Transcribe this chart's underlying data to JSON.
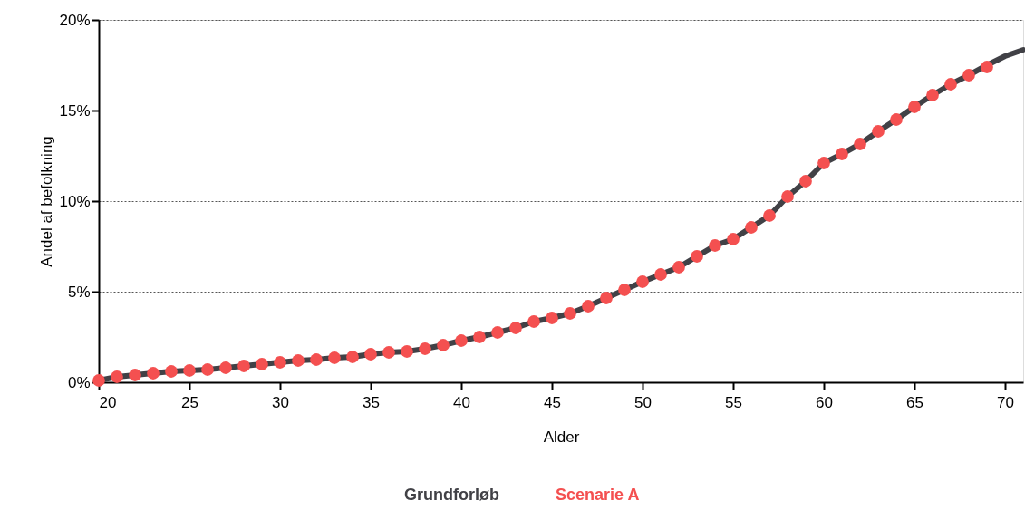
{
  "chart_data": {
    "type": "line",
    "xlabel": "Alder",
    "ylabel": "Andel af befolkning",
    "x": [
      20,
      21,
      22,
      23,
      24,
      25,
      26,
      27,
      28,
      29,
      30,
      31,
      32,
      33,
      34,
      35,
      36,
      37,
      38,
      39,
      40,
      41,
      42,
      43,
      44,
      45,
      46,
      47,
      48,
      49,
      50,
      51,
      52,
      53,
      54,
      55,
      56,
      57,
      58,
      59,
      60,
      61,
      62,
      63,
      64,
      65,
      66,
      67,
      68,
      69,
      70,
      71
    ],
    "series": [
      {
        "name": "Grundforløb",
        "color": "#414146",
        "marker": "none",
        "values": [
          0.1,
          0.3,
          0.4,
          0.5,
          0.6,
          0.65,
          0.7,
          0.8,
          0.9,
          1.0,
          1.1,
          1.2,
          1.25,
          1.35,
          1.4,
          1.55,
          1.65,
          1.7,
          1.85,
          2.05,
          2.3,
          2.5,
          2.75,
          3.0,
          3.35,
          3.55,
          3.8,
          4.2,
          4.65,
          5.1,
          5.55,
          5.95,
          6.35,
          6.95,
          7.55,
          7.9,
          8.55,
          9.2,
          10.25,
          11.1,
          12.1,
          12.6,
          13.15,
          13.85,
          14.5,
          15.2,
          15.85,
          16.45,
          16.95,
          17.5,
          18.0,
          18.35
        ]
      },
      {
        "name": "Scenarie A",
        "color": "#f45050",
        "type": "scatter",
        "marker": "circle",
        "values": [
          0.1,
          0.3,
          0.4,
          0.5,
          0.6,
          0.65,
          0.7,
          0.8,
          0.9,
          1.0,
          1.1,
          1.2,
          1.25,
          1.35,
          1.4,
          1.55,
          1.65,
          1.7,
          1.85,
          2.05,
          2.3,
          2.5,
          2.75,
          3.0,
          3.35,
          3.55,
          3.8,
          4.2,
          4.65,
          5.1,
          5.55,
          5.95,
          6.35,
          6.95,
          7.55,
          7.9,
          8.55,
          9.2,
          10.25,
          11.1,
          12.1,
          12.6,
          13.15,
          13.85,
          14.5,
          15.2,
          15.85,
          16.45,
          16.95,
          17.4,
          null,
          null
        ]
      }
    ],
    "xlim": [
      20,
      71
    ],
    "xticks": [
      20,
      25,
      30,
      35,
      40,
      45,
      50,
      55,
      60,
      65,
      70
    ],
    "ylim": [
      0,
      20
    ],
    "yticks": [
      {
        "value": 0,
        "label": "0%"
      },
      {
        "value": 5,
        "label": "5%"
      },
      {
        "value": 10,
        "label": "10%"
      },
      {
        "value": 15,
        "label": "15%"
      },
      {
        "value": 20,
        "label": "20%"
      }
    ],
    "grid": "y",
    "legend": "bottom"
  }
}
